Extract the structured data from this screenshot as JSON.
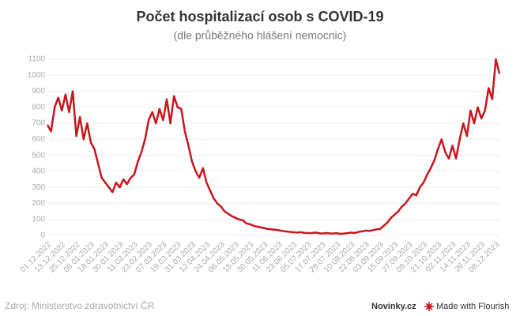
{
  "chart_data": {
    "type": "line",
    "title": "Počet hospitalizací osob s COVID-19",
    "subtitle": "(dle průběžného hlášení nemocnic)",
    "source": "Zdroj: Ministerstvo zdravotnictví ČR",
    "brand": "Novinky.cz",
    "credit": "Made with Flourish",
    "color": "#c8161d",
    "grid": true,
    "x": [
      "01.12.2022",
      "04.12.2022",
      "07.12.2022",
      "10.12.2022",
      "13.12.2022",
      "16.12.2022",
      "19.12.2022",
      "22.12.2022",
      "25.12.2022",
      "28.12.2022",
      "31.12.2022",
      "03.01.2023",
      "06.01.2023",
      "09.01.2023",
      "12.01.2023",
      "15.01.2023",
      "18.01.2023",
      "21.01.2023",
      "24.01.2023",
      "27.01.2023",
      "30.01.2023",
      "02.02.2023",
      "05.02.2023",
      "08.02.2023",
      "11.02.2023",
      "14.02.2023",
      "17.02.2023",
      "20.02.2023",
      "23.02.2023",
      "26.02.2023",
      "01.03.2023",
      "04.03.2023",
      "07.03.2023",
      "10.03.2023",
      "13.03.2023",
      "16.03.2023",
      "19.03.2023",
      "22.03.2023",
      "25.03.2023",
      "28.03.2023",
      "31.03.2023",
      "03.04.2023",
      "06.04.2023",
      "09.04.2023",
      "12.04.2023",
      "15.04.2023",
      "18.04.2023",
      "21.04.2023",
      "24.04.2023",
      "27.04.2023",
      "30.04.2023",
      "03.05.2023",
      "06.05.2023",
      "09.05.2023",
      "12.05.2023",
      "15.05.2023",
      "18.05.2023",
      "21.05.2023",
      "24.05.2023",
      "27.05.2023",
      "30.05.2023",
      "02.06.2023",
      "05.06.2023",
      "08.06.2023",
      "11.06.2023",
      "14.06.2023",
      "17.06.2023",
      "20.06.2023",
      "23.06.2023",
      "26.06.2023",
      "29.06.2023",
      "02.07.2023",
      "05.07.2023",
      "08.07.2023",
      "11.07.2023",
      "14.07.2023",
      "17.07.2023",
      "20.07.2023",
      "23.07.2023",
      "26.07.2023",
      "29.07.2023",
      "01.08.2023",
      "04.08.2023",
      "07.08.2023",
      "10.08.2023",
      "13.08.2023",
      "16.08.2023",
      "19.08.2023",
      "22.08.2023",
      "25.08.2023",
      "28.08.2023",
      "31.08.2023",
      "03.09.2023",
      "06.09.2023",
      "09.09.2023",
      "12.09.2023",
      "15.09.2023",
      "18.09.2023",
      "21.09.2023",
      "24.09.2023",
      "27.09.2023",
      "30.09.2023",
      "03.10.2023",
      "06.10.2023",
      "09.10.2023",
      "12.10.2023",
      "15.10.2023",
      "18.10.2023",
      "21.10.2023",
      "24.10.2023",
      "27.10.2023",
      "30.10.2023",
      "02.11.2023",
      "05.11.2023",
      "08.11.2023",
      "11.11.2023",
      "14.11.2023",
      "17.11.2023",
      "20.11.2023",
      "23.11.2023",
      "26.11.2023",
      "29.11.2023",
      "02.12.2023",
      "05.12.2023",
      "08.12.2023",
      "11.12.2023"
    ],
    "values": [
      690,
      650,
      800,
      860,
      780,
      880,
      770,
      900,
      620,
      740,
      600,
      700,
      580,
      540,
      450,
      360,
      330,
      300,
      270,
      330,
      300,
      350,
      320,
      360,
      380,
      460,
      520,
      600,
      720,
      770,
      700,
      790,
      720,
      850,
      700,
      870,
      800,
      790,
      650,
      560,
      460,
      400,
      360,
      420,
      330,
      280,
      230,
      200,
      180,
      150,
      135,
      120,
      110,
      100,
      95,
      75,
      70,
      60,
      55,
      50,
      45,
      40,
      38,
      35,
      32,
      28,
      25,
      22,
      20,
      18,
      20,
      16,
      15,
      14,
      18,
      14,
      12,
      15,
      13,
      12,
      14,
      10,
      12,
      14,
      18,
      15,
      22,
      25,
      30,
      28,
      33,
      38,
      40,
      60,
      80,
      110,
      130,
      150,
      180,
      200,
      230,
      260,
      250,
      300,
      330,
      380,
      420,
      470,
      540,
      600,
      520,
      480,
      560,
      480,
      600,
      700,
      620,
      780,
      700,
      800,
      730,
      780,
      920,
      850,
      1100,
      1010
    ],
    "xticks": [
      "01.12.2022",
      "13.12.2022",
      "25.12.2022",
      "06.01.2023",
      "18.01.2023",
      "30.01.2023",
      "11.02.2023",
      "23.02.2023",
      "07.03.2023",
      "19.03.2023",
      "31.03.2023",
      "12.04.2023",
      "24.04.2023",
      "06.05.2023",
      "18.05.2023",
      "30.05.2023",
      "11.06.2023",
      "23.06.2023",
      "05.07.2023",
      "17.07.2023",
      "29.07.2023",
      "10.08.2023",
      "22.08.2023",
      "03.09.2023",
      "15.09.2023",
      "27.09.2023",
      "09.10.2023",
      "21.10.2023",
      "02.11.2023",
      "14.11.2023",
      "26.11.2023",
      "08.12.2023"
    ],
    "ylim": [
      0,
      1100
    ],
    "yticks": [
      0,
      100,
      200,
      300,
      400,
      500,
      600,
      700,
      800,
      900,
      1000,
      1100
    ]
  }
}
